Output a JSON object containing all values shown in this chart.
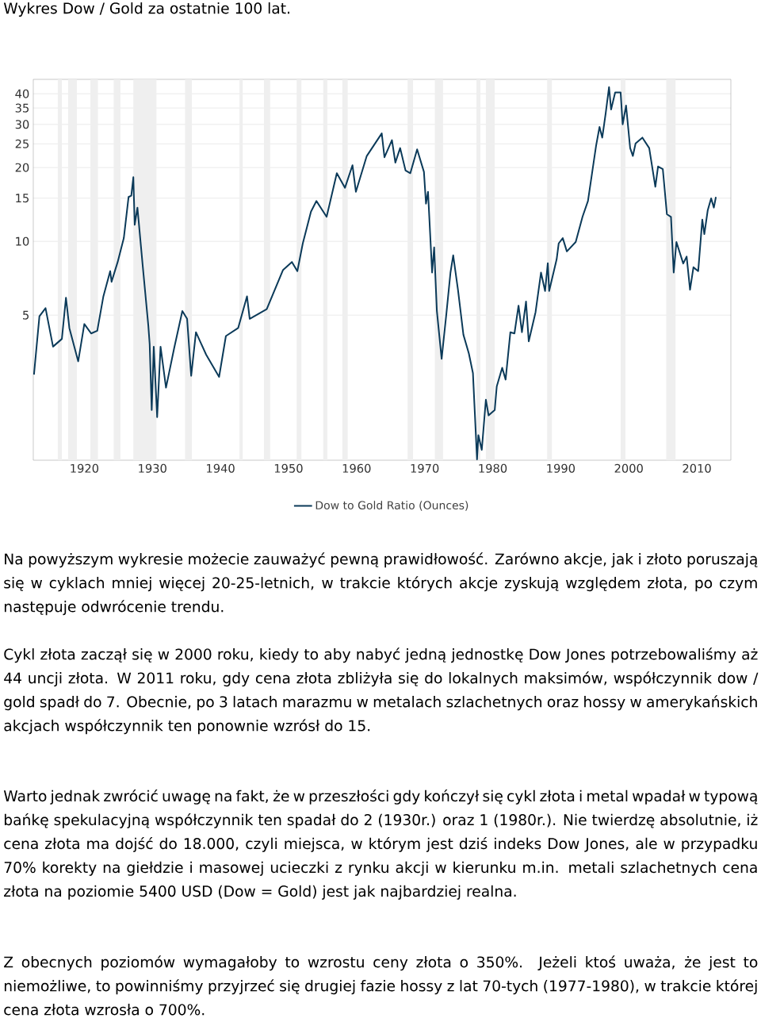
{
  "chart_data": {
    "type": "line",
    "title": "Wykres Dow / Gold za ostatnie 100 lat.",
    "x": [
      1912.6,
      1913.4,
      1914.3,
      1915.4,
      1916.7,
      1917.3,
      1917.8,
      1919.1,
      1920.0,
      1921.0,
      1921.9,
      1922.8,
      1923.8,
      1924.0,
      1924.9,
      1925.8,
      1926.5,
      1926.9,
      1927.2,
      1927.4,
      1927.8,
      1928.6,
      1929.4,
      1929.6,
      1929.9,
      1930.2,
      1930.7,
      1931.2,
      1932.0,
      1933.2,
      1934.4,
      1935.1,
      1935.7,
      1936.4,
      1937.9,
      1939.8,
      1940.8,
      1942.6,
      1943.9,
      1944.3,
      1946.8,
      1949.2,
      1950.5,
      1951.3,
      1952.1,
      1953.3,
      1954.1,
      1955.6,
      1957.1,
      1958.3,
      1959.4,
      1959.9,
      1961.5,
      1963.7,
      1964.1,
      1965.2,
      1965.7,
      1966.4,
      1967.2,
      1967.9,
      1968.9,
      1969.9,
      1970.2,
      1970.5,
      1971.1,
      1971.4,
      1971.8,
      1972.5,
      1973.2,
      1973.8,
      1974.2,
      1974.9,
      1975.7,
      1976.5,
      1977.1,
      1977.7,
      1977.9,
      1978.4,
      1979.0,
      1979.4,
      1980.3,
      1980.6,
      1981.4,
      1981.9,
      1982.6,
      1983.2,
      1983.8,
      1984.3,
      1984.9,
      1985.3,
      1986.3,
      1987.1,
      1987.7,
      1988.1,
      1988.3,
      1989.4,
      1989.7,
      1990.3,
      1990.9,
      1992.2,
      1993.2,
      1994.0,
      1994.6,
      1995.2,
      1995.7,
      1996.1,
      1996.6,
      1997.1,
      1997.4,
      1998.0,
      1998.8,
      1999.1,
      1999.6,
      2000.2,
      2000.6,
      2001.0,
      2002.0,
      2003.0,
      2003.9,
      2004.3,
      2005.0,
      2005.6,
      2006.2,
      2006.6,
      2007.0,
      2008.0,
      2008.5,
      2009.0,
      2009.5,
      2010.2,
      2010.8,
      2011.1,
      2011.6,
      2012.1,
      2012.5,
      2012.8
    ],
    "series": [
      {
        "name": "Dow to Gold Ratio (Ounces)",
        "color": "#0b3a59",
        "values": [
          2.86,
          4.95,
          5.34,
          3.72,
          4.0,
          5.89,
          4.43,
          3.24,
          4.6,
          4.21,
          4.32,
          5.97,
          7.56,
          6.84,
          8.24,
          10.31,
          15.17,
          15.36,
          18.28,
          11.68,
          13.73,
          7.84,
          4.54,
          3.81,
          2.05,
          3.72,
          1.92,
          3.72,
          2.53,
          3.67,
          5.2,
          4.83,
          2.83,
          4.26,
          3.45,
          2.8,
          4.11,
          4.43,
          5.97,
          4.83,
          5.29,
          7.65,
          8.24,
          7.56,
          9.81,
          13.22,
          14.61,
          12.59,
          18.97,
          16.54,
          20.45,
          15.93,
          22.3,
          27.56,
          22.03,
          25.88,
          20.96,
          24.02,
          19.45,
          18.97,
          23.72,
          19.21,
          14.25,
          15.93,
          7.46,
          9.45,
          5.2,
          3.32,
          5.08,
          7.46,
          8.77,
          6.35,
          4.16,
          3.49,
          2.9,
          1.29,
          1.62,
          1.41,
          2.26,
          1.95,
          2.05,
          2.56,
          3.05,
          2.73,
          4.26,
          4.21,
          5.47,
          4.26,
          5.68,
          3.91,
          5.14,
          7.46,
          6.27,
          8.15,
          6.27,
          8.45,
          9.81,
          10.31,
          9.1,
          9.94,
          12.59,
          14.61,
          18.97,
          24.6,
          29.3,
          26.5,
          33.2,
          42.6,
          34.5,
          40.5,
          40.5,
          30.0,
          35.8,
          24.02,
          22.3,
          25.1,
          26.5,
          24.02,
          16.7,
          20.2,
          19.7,
          12.9,
          12.59,
          7.46,
          9.94,
          8.12,
          8.67,
          6.35,
          7.84,
          7.56,
          12.27,
          10.7,
          13.39,
          14.98,
          13.73,
          15.17
        ]
      }
    ],
    "xlim": [
      1912.5,
      2015
    ],
    "ylim": [
      1.28,
      45.8
    ],
    "xticks": [
      1920,
      1930,
      1940,
      1950,
      1960,
      1970,
      1980,
      1990,
      2000,
      2010
    ],
    "yticks": [
      5,
      10,
      15,
      20,
      25,
      30,
      35,
      40
    ],
    "log": "y",
    "grid": "y",
    "legend": "bottom",
    "marker": "none",
    "bands": [
      {
        "axis": "x",
        "from": 1916.1,
        "to": 1916.7,
        "color": "#efefef"
      },
      {
        "axis": "x",
        "from": 1917.6,
        "to": 1918.9,
        "color": "#efefef"
      },
      {
        "axis": "x",
        "from": 1920.9,
        "to": 1922.0,
        "color": "#efefef"
      },
      {
        "axis": "x",
        "from": 1924.3,
        "to": 1925.3,
        "color": "#efefef"
      },
      {
        "axis": "x",
        "from": 1927.2,
        "to": 1930.6,
        "color": "#efefef"
      },
      {
        "axis": "x",
        "from": 1934.8,
        "to": 1935.8,
        "color": "#efefef"
      },
      {
        "axis": "x",
        "from": 1942.8,
        "to": 1943.3,
        "color": "#efefef"
      },
      {
        "axis": "x",
        "from": 1946.4,
        "to": 1947.3,
        "color": "#efefef"
      },
      {
        "axis": "x",
        "from": 1951.2,
        "to": 1951.9,
        "color": "#efefef"
      },
      {
        "axis": "x",
        "from": 1955.1,
        "to": 1955.7,
        "color": "#efefef"
      },
      {
        "axis": "x",
        "from": 1957.9,
        "to": 1958.7,
        "color": "#efefef"
      },
      {
        "axis": "x",
        "from": 1967.5,
        "to": 1968.3,
        "color": "#efefef"
      },
      {
        "axis": "x",
        "from": 1971.5,
        "to": 1972.7,
        "color": "#efefef"
      },
      {
        "axis": "x",
        "from": 1977.6,
        "to": 1978.2,
        "color": "#efefef"
      },
      {
        "axis": "x",
        "from": 1979.0,
        "to": 1980.3,
        "color": "#efefef"
      },
      {
        "axis": "x",
        "from": 1988.0,
        "to": 1988.7,
        "color": "#efefef"
      },
      {
        "axis": "x",
        "from": 1998.8,
        "to": 1999.5,
        "color": "#efefef"
      },
      {
        "axis": "x",
        "from": 2005.5,
        "to": 2006.9,
        "color": "#efefef"
      }
    ],
    "annotations": [
      "Na powyższym wykresie możecie zauważyć pewną prawidłowość. Zarówno akcje, jak i złoto poruszają się w cyklach mniej więcej 20-25-letnich, w trakcie których akcje zyskują względem złota, po czym następuje odwrócenie trendu.",
      "Cykl złota zaczął się w 2000 roku, kiedy to aby nabyć jedną jednostkę Dow Jones potrzebowaliśmy aż 44 uncji złota. W 2011 roku, gdy cena złota zbliżyła się do lokalnych maksimów, współczynnik dow / gold spadł do 7. Obecnie, po 3 latach marazmu w metalach szlachetnych oraz hossy w amerykańskich akcjach współczynnik ten ponownie wzrósł do 15.",
      "Warto jednak zwrócić uwagę na fakt, że w przeszłości gdy kończył się cykl złota i metal wpadał w typową bańkę spekulacyjną współczynnik ten spadał do 2 (1930r.) oraz 1 (1980r.). Nie twierdzę absolutnie, iż cena złota ma dojść do 18.000, czyli miejsca, w którym jest dziś indeks Dow Jones, ale w przypadku 70% korekty na giełdzie i masowej ucieczki z rynku akcji w kierunku m.in. metali szlachetnych cena złota na poziomie 5400 USD (Dow = Gold) jest jak najbardziej realna.",
      "Z obecnych poziomów wymagałoby to wzrostu ceny złota o 350%. Jeżeli ktoś uważa, że jest to niemożliwe, to powinniśmy przyjrzeć się drugiej fazie hossy z lat 70-tych (1977-1980), w trakcie której cena złota wzrosła o 700%."
    ]
  }
}
